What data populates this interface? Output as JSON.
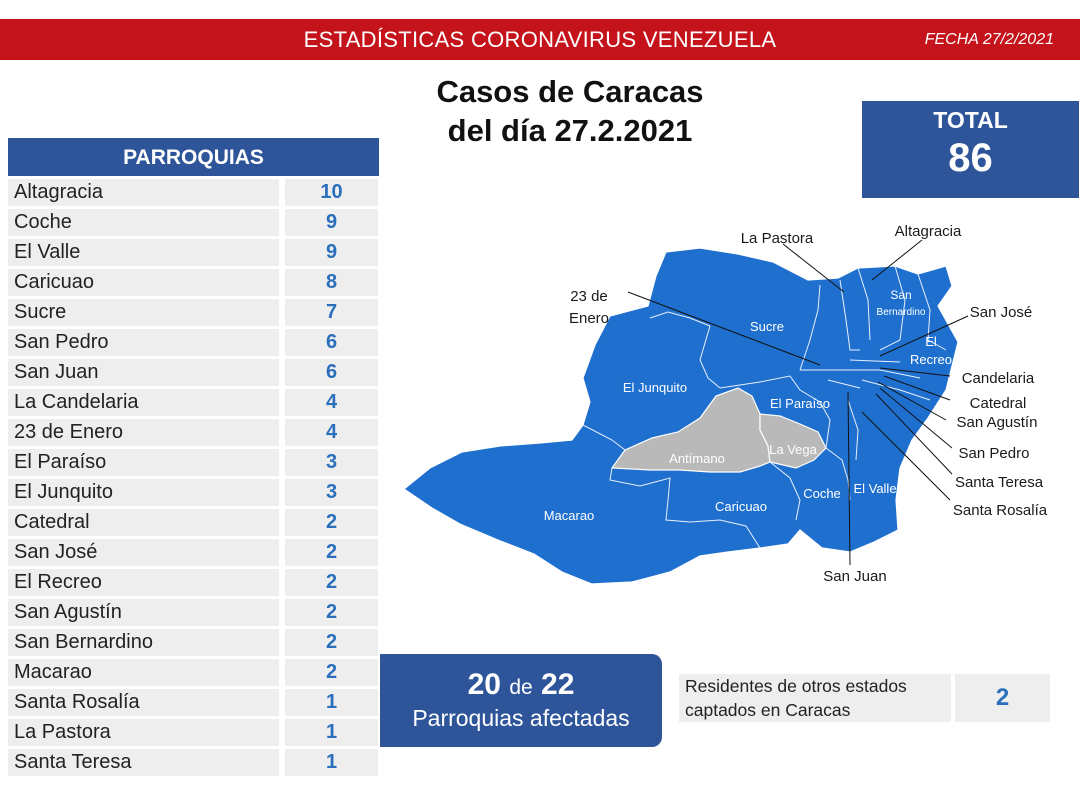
{
  "header": {
    "title": "ESTADÍSTICAS CORONAVIRUS VENEZUELA",
    "date": "FECHA 27/2/2021"
  },
  "main_title": {
    "line1": "Casos de Caracas",
    "line2": "del día 27.2.2021"
  },
  "total": {
    "label": "TOTAL",
    "value": "86"
  },
  "table": {
    "header": "PARROQUIAS",
    "rows": [
      {
        "name": "Altagracia",
        "count": "10"
      },
      {
        "name": "Coche",
        "count": "9"
      },
      {
        "name": "El Valle",
        "count": "9"
      },
      {
        "name": "Caricuao",
        "count": "8"
      },
      {
        "name": "Sucre",
        "count": "7"
      },
      {
        "name": "San Pedro",
        "count": "6"
      },
      {
        "name": "San Juan",
        "count": "6"
      },
      {
        "name": "La Candelaria",
        "count": "4"
      },
      {
        "name": "23 de Enero",
        "count": "4"
      },
      {
        "name": "El Paraíso",
        "count": "3"
      },
      {
        "name": "El Junquito",
        "count": "3"
      },
      {
        "name": "Catedral",
        "count": "2"
      },
      {
        "name": "San José",
        "count": "2"
      },
      {
        "name": "El Recreo",
        "count": "2"
      },
      {
        "name": "San Agustín",
        "count": "2"
      },
      {
        "name": "San Bernardino",
        "count": "2"
      },
      {
        "name": "Macarao",
        "count": "2"
      },
      {
        "name": "Santa Rosalía",
        "count": "1"
      },
      {
        "name": "La Pastora",
        "count": "1"
      },
      {
        "name": "Santa Teresa",
        "count": "1"
      }
    ]
  },
  "affected": {
    "count": "20",
    "connector": "de",
    "total": "22",
    "label": "Parroquias afectadas"
  },
  "residents": {
    "line1": "Residentes de otros estados",
    "line2": "captados en Caracas",
    "value": "2"
  },
  "map": {
    "colors": {
      "affected": "#1f6fcf",
      "unaffected": "#b9b9b9",
      "border": "#ffffff"
    },
    "inner_labels": {
      "el_junquito": "El Junquito",
      "sucre": "Sucre",
      "san_bernardino_1": "San",
      "san_bernardino_2": "Bernardino",
      "el_recreo_1": "El",
      "el_recreo_2": "Recreo",
      "el_paraiso": "El Paraíso",
      "antimano": "Antímano",
      "la_vega": "La Vega",
      "macarao": "Macarao",
      "caricuao": "Caricuao",
      "coche": "Coche",
      "el_valle": "El Valle"
    },
    "callouts": {
      "la_pastora": "La Pastora",
      "altagracia": "Altagracia",
      "enero_1": "23 de",
      "enero_2": "Enero",
      "san_jose": "San José",
      "candelaria": "Candelaria",
      "catedral": "Catedral",
      "san_agustin": "San Agustín",
      "san_pedro": "San Pedro",
      "santa_teresa": "Santa Teresa",
      "santa_rosalia": "Santa Rosalía",
      "san_juan": "San Juan"
    }
  }
}
